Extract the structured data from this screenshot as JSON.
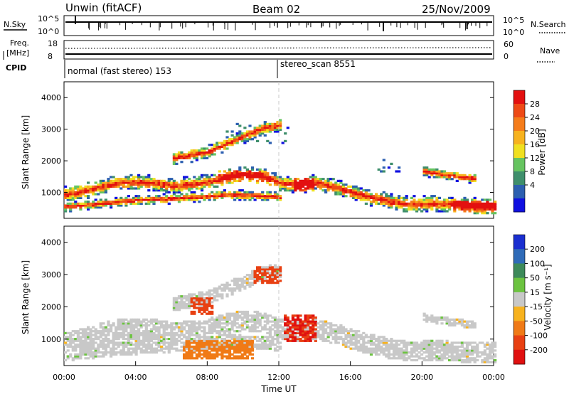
{
  "header": {
    "radar": "Unwin (fitACF)",
    "beam": "Beam 02",
    "date": "25/Nov/2009"
  },
  "summary_panels": {
    "nsky_label": "N.Sky",
    "nsky_ticks": [
      "10^5",
      "10^0"
    ],
    "nsearch_label": "N.Search",
    "nsearch_ticks": [
      "10^5",
      "10^0"
    ],
    "freq_label_line1": "Freq.",
    "freq_label_line2": "[MHz]",
    "freq_ticks": [
      "18",
      "8"
    ],
    "nave_label": "Nave",
    "nave_ticks": [
      "60",
      "0"
    ],
    "cpid_label": "CPID",
    "cpid_segments": [
      {
        "name": "normal (fast stereo) 153",
        "start_h": 0
      },
      {
        "name": "stereo_scan 8551",
        "start_h": 12
      }
    ]
  },
  "chart_data": [
    {
      "type": "heatmap",
      "title": "Power",
      "ylabel": "Slant Range [km]",
      "xlabel": "",
      "xlim": [
        0,
        24
      ],
      "ylim": [
        180,
        4500
      ],
      "yticks": [
        "1000",
        "2000",
        "3000",
        "4000"
      ],
      "colorbar": {
        "label": "Power [dB]",
        "ticks": [
          "4",
          "8",
          "12",
          "16",
          "20",
          "24",
          "28"
        ],
        "colors": [
          "#1010e0",
          "#2c5fb0",
          "#3f8f6c",
          "#66c460",
          "#f0e020",
          "#f7b21e",
          "#f57c1a",
          "#ee4a16",
          "#e31010"
        ]
      },
      "bands": [
        {
          "x": [
            0,
            1,
            2,
            3,
            4,
            5,
            6,
            7,
            8,
            9,
            10,
            11,
            12,
            13,
            14,
            15,
            16,
            17,
            18,
            19,
            20,
            21,
            22,
            23,
            24
          ],
          "y": [
            900,
            1000,
            1150,
            1280,
            1300,
            1270,
            1180,
            1220,
            1300,
            1450,
            1550,
            1500,
            1280,
            1200,
            1280,
            1150,
            980,
            820,
            700,
            600,
            600,
            620,
            580,
            560,
            540
          ]
        },
        {
          "x": [
            0,
            1,
            2,
            3,
            4,
            5,
            6,
            7,
            8,
            9,
            10,
            11,
            12
          ],
          "y": [
            520,
            560,
            620,
            680,
            720,
            750,
            780,
            820,
            850,
            900,
            880,
            860,
            830
          ]
        },
        {
          "x": [
            6,
            7,
            8,
            9,
            10,
            11,
            12
          ],
          "y": [
            2050,
            2150,
            2250,
            2500,
            2750,
            3000,
            3100
          ]
        },
        {
          "x": [
            20,
            21,
            22,
            23
          ],
          "y": [
            1650,
            1550,
            1480,
            1400
          ]
        }
      ]
    },
    {
      "type": "heatmap",
      "title": "Velocity",
      "ylabel": "Slant Range [km]",
      "xlabel": "Time UT",
      "xlim": [
        0,
        24
      ],
      "ylim": [
        180,
        4500
      ],
      "yticks": [
        "1000",
        "2000",
        "3000",
        "4000"
      ],
      "xticks": [
        "00:00",
        "04:00",
        "08:00",
        "12:00",
        "16:00",
        "20:00",
        "00:00"
      ],
      "colorbar": {
        "label": "Velocity [m s⁻¹]",
        "ticks": [
          "200",
          "100",
          "50",
          "15",
          "-15",
          "-50",
          "-100",
          "-200"
        ],
        "colors": [
          "#1a2fd0",
          "#2f6bb8",
          "#3d8a5a",
          "#6cc340",
          "#c8c8c8",
          "#f7b21e",
          "#f07a16",
          "#e84012",
          "#e01010"
        ]
      },
      "features": [
        {
          "name": "gray background echoes",
          "t_start": 0,
          "t_end": 24,
          "range_km": [
            500,
            1700
          ]
        },
        {
          "name": "red high-negative patch",
          "t_start": 12.2,
          "t_end": 14.0,
          "range_km": [
            900,
            1700
          ]
        },
        {
          "name": "orange patch",
          "t_start": 6.5,
          "t_end": 10.5,
          "range_km": [
            350,
            950
          ]
        },
        {
          "name": "red upper patch",
          "t_start": 10.5,
          "t_end": 12.0,
          "range_km": [
            2700,
            3250
          ]
        },
        {
          "name": "red mid patch",
          "t_start": 7.0,
          "t_end": 8.3,
          "range_km": [
            1750,
            2250
          ]
        }
      ]
    }
  ]
}
